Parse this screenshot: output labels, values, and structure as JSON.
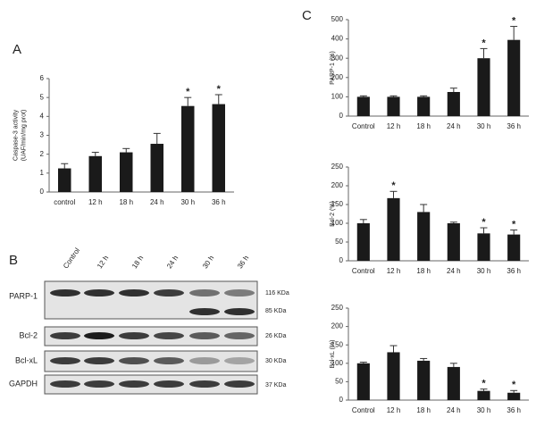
{
  "chart_data": [
    {
      "type": "bar",
      "panel_label": "A",
      "y_label": [
        "Caspase-3 activity",
        "(UAF/min/mg prot)"
      ],
      "categories": [
        "control",
        "12 h",
        "18 h",
        "24 h",
        "30 h",
        "36 h"
      ],
      "values": [
        1.25,
        1.9,
        2.1,
        2.55,
        4.55,
        4.65
      ],
      "errors": [
        0.25,
        0.2,
        0.2,
        0.55,
        0.45,
        0.5
      ],
      "annotations": [
        null,
        null,
        null,
        null,
        "*",
        "*"
      ],
      "color": "#1a1a1a",
      "ylim": [
        0,
        6
      ],
      "yticks": [
        0,
        1,
        2,
        3,
        4,
        5,
        6
      ]
    },
    {
      "type": "bar",
      "panel_label": "C",
      "y_label": [
        "PARP-1 (%)"
      ],
      "categories": [
        "Control",
        "12 h",
        "18 h",
        "24 h",
        "30 h",
        "36 h"
      ],
      "values": [
        100,
        100,
        100,
        125,
        300,
        395
      ],
      "errors": [
        5,
        5,
        5,
        20,
        50,
        70
      ],
      "annotations": [
        null,
        null,
        null,
        null,
        "*",
        "*"
      ],
      "color": "#1a1a1a",
      "ylim": [
        0,
        500
      ],
      "yticks": [
        0,
        100,
        200,
        300,
        400,
        500
      ]
    },
    {
      "type": "bar",
      "y_label": [
        "Bcl-2 (%)"
      ],
      "categories": [
        "Control",
        "12 h",
        "18 h",
        "24 h",
        "30 h",
        "36 h"
      ],
      "values": [
        100,
        167,
        130,
        100,
        73,
        70
      ],
      "errors": [
        10,
        18,
        20,
        3,
        15,
        12
      ],
      "annotations": [
        null,
        "*",
        null,
        null,
        "*",
        "*"
      ],
      "color": "#1a1a1a",
      "ylim": [
        0,
        250
      ],
      "yticks": [
        0,
        50,
        100,
        150,
        200,
        250
      ]
    },
    {
      "type": "bar",
      "y_label": [
        "Bcl-xL (%)"
      ],
      "categories": [
        "Control",
        "12 h",
        "18 h",
        "24 h",
        "30 h",
        "36 h"
      ],
      "values": [
        100,
        130,
        107,
        90,
        25,
        20
      ],
      "errors": [
        3,
        18,
        6,
        10,
        5,
        6
      ],
      "annotations": [
        null,
        null,
        null,
        null,
        "*",
        "*"
      ],
      "color": "#1a1a1a",
      "ylim": [
        0,
        250
      ],
      "yticks": [
        0,
        50,
        100,
        150,
        200,
        250
      ]
    }
  ],
  "blot": {
    "panel_label": "B",
    "lanes": [
      "Control",
      "12 h",
      "18 h",
      "24 h",
      "30 h",
      "36 h"
    ],
    "rows": [
      "PARP-1",
      "Bcl-2",
      "Bcl-xL",
      "GAPDH"
    ],
    "markers": [
      "116 KDa",
      "85 KDa",
      "26 KDa",
      "30 KDa",
      "37 KDa"
    ]
  }
}
